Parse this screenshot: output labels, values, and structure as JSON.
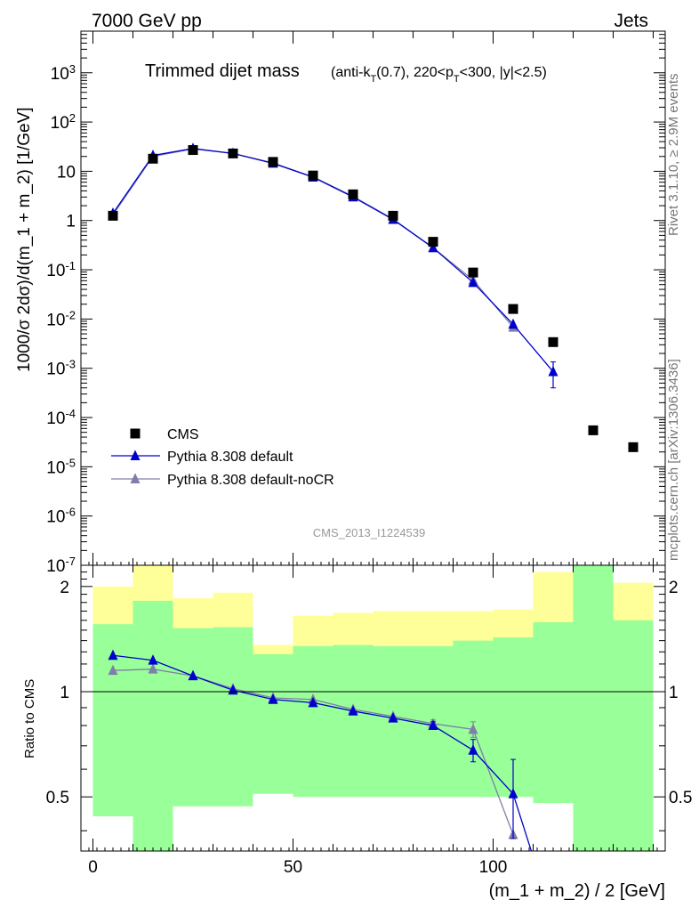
{
  "header": {
    "left": "7000 GeV pp",
    "right": "Jets"
  },
  "title": {
    "main": "Trimmed dijet mass",
    "detail": "(anti-k_T(0.7), 220<p_T<300, |y|<2.5)"
  },
  "side_labels": {
    "rivet": "Rivet 3.1.10, ≥ 2.9M events",
    "mcplots": "mcplots.cern.ch [arXiv:1306.3436]"
  },
  "watermark": "CMS_2013_I1224539",
  "colors": {
    "cms": "#000000",
    "default": "#0000cc",
    "nocr": "#7f7fa8",
    "band_inner": "#99ff99",
    "band_outer": "#ffff99"
  },
  "chart_data": [
    {
      "type": "scatter",
      "name": "main",
      "ylabel": "1000/σ 2dσ)/d(m_1 + m_2) [1/GeV]",
      "yscale": "log",
      "ylim": [
        1e-07,
        7000
      ],
      "xlim": [
        -3,
        143
      ],
      "y_ticks": [
        "10^-7",
        "10^-6",
        "10^-5",
        "10^-4",
        "10^-3",
        "10^-2",
        "10^-1",
        "1",
        "10",
        "10^2",
        "10^3"
      ],
      "legend_position": "bottom-left",
      "series": [
        {
          "name": "CMS",
          "marker": "square",
          "x": [
            5,
            15,
            25,
            35,
            45,
            55,
            65,
            75,
            85,
            95,
            105,
            115,
            125,
            135
          ],
          "y": [
            1.25,
            18,
            27,
            23,
            15.5,
            8.2,
            3.4,
            1.25,
            0.37,
            0.088,
            0.016,
            0.0034,
            5.5e-05,
            2.5e-05
          ]
        },
        {
          "name": "Pythia 8.308 default",
          "marker": "triangle",
          "x": [
            5,
            15,
            25,
            35,
            45,
            55,
            65,
            75,
            85,
            95,
            105,
            115
          ],
          "y": [
            1.4,
            21,
            29,
            23,
            14.5,
            7.6,
            3.0,
            1.05,
            0.28,
            0.055,
            0.0078,
            0.00085
          ],
          "err_low": [
            0,
            0,
            0,
            0,
            0,
            0,
            0,
            0,
            0,
            0,
            0,
            0.00045
          ],
          "err_high": [
            0,
            0,
            0,
            0,
            0,
            0,
            0,
            0,
            0,
            0,
            0,
            0.0005
          ]
        },
        {
          "name": "Pythia 8.308 default-noCR",
          "marker": "triangle",
          "x": [
            5,
            15,
            25,
            35,
            45,
            55,
            65,
            75,
            85,
            95,
            105
          ],
          "y": [
            1.3,
            20,
            28.5,
            23,
            14.8,
            7.7,
            3.1,
            1.07,
            0.28,
            0.062,
            0.0068
          ]
        }
      ]
    },
    {
      "type": "line",
      "name": "ratio",
      "ylabel": "Ratio to CMS",
      "xlabel": "(m_1 + m_2) / 2 [GeV]",
      "ylim": [
        0.35,
        2.3
      ],
      "xlim": [
        -3,
        143
      ],
      "x_ticks": [
        0,
        50,
        100
      ],
      "y_ticks": [
        0.5,
        1,
        2
      ],
      "bands": {
        "bins": [
          [
            0,
            10
          ],
          [
            10,
            20
          ],
          [
            20,
            30
          ],
          [
            30,
            40
          ],
          [
            40,
            50
          ],
          [
            50,
            60
          ],
          [
            60,
            70
          ],
          [
            70,
            80
          ],
          [
            80,
            90
          ],
          [
            90,
            100
          ],
          [
            100,
            110
          ],
          [
            110,
            120
          ],
          [
            120,
            130
          ],
          [
            130,
            140
          ]
        ],
        "inner_low": [
          0.44,
          0.28,
          0.47,
          0.47,
          0.51,
          0.5,
          0.5,
          0.5,
          0.5,
          0.5,
          0.5,
          0.48,
          0.28,
          0.29
        ],
        "inner_high": [
          1.56,
          1.82,
          1.52,
          1.53,
          1.28,
          1.35,
          1.36,
          1.35,
          1.35,
          1.4,
          1.43,
          1.58,
          2.5,
          1.6
        ],
        "outer_low": [
          0.56,
          0.28,
          0.62,
          0.58,
          0.84,
          0.8,
          0.8,
          0.82,
          0.79,
          0.85,
          0.87,
          0.52,
          0.28,
          0.29
        ],
        "outer_high": [
          2.0,
          2.4,
          1.85,
          1.92,
          1.36,
          1.65,
          1.68,
          1.7,
          1.7,
          1.7,
          1.72,
          2.2,
          2.5,
          2.05
        ]
      },
      "series": [
        {
          "name": "Pythia 8.308 default",
          "x": [
            5,
            15,
            25,
            35,
            45,
            55,
            65,
            75,
            85,
            95,
            105,
            111
          ],
          "y": [
            1.27,
            1.23,
            1.11,
            1.01,
            0.95,
            0.93,
            0.88,
            0.84,
            0.8,
            0.68,
            0.51,
            0.31
          ],
          "err_low": [
            0,
            0,
            0,
            0,
            0,
            0,
            0,
            0,
            0.02,
            0.05,
            0.13,
            0
          ],
          "err_high": [
            0,
            0,
            0,
            0,
            0,
            0,
            0,
            0,
            0.02,
            0.05,
            0.13,
            0
          ]
        },
        {
          "name": "Pythia 8.308 default-noCR",
          "x": [
            5,
            15,
            25,
            35,
            45,
            55,
            65,
            75,
            85,
            95,
            105
          ],
          "y": [
            1.15,
            1.16,
            1.11,
            1.02,
            0.96,
            0.95,
            0.89,
            0.85,
            0.81,
            0.78,
            0.39
          ],
          "err_low": [
            0,
            0,
            0,
            0,
            0,
            0,
            0,
            0,
            0.02,
            0.04,
            0
          ],
          "err_high": [
            0,
            0,
            0,
            0,
            0,
            0,
            0,
            0,
            0.02,
            0.04,
            0
          ]
        }
      ]
    }
  ]
}
